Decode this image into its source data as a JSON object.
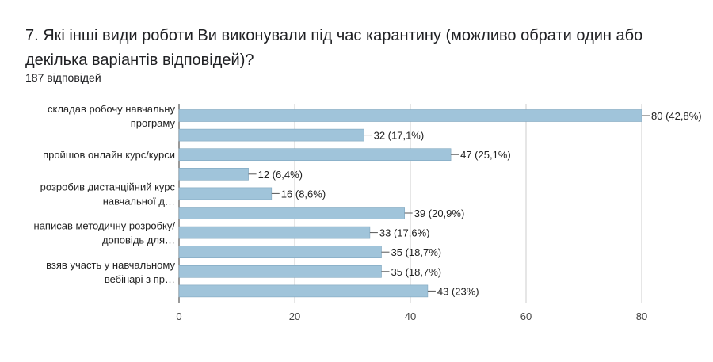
{
  "question": {
    "title": "7. Які інші види роботи Ви виконували під час карантину (можливо обрати один або декілька варіантів відповідей)?",
    "responses": "187 відповідей"
  },
  "chart_data": {
    "type": "bar",
    "orientation": "horizontal",
    "title": "",
    "xlabel": "",
    "ylabel": "",
    "xlim": [
      0,
      80
    ],
    "xticks": [
      0,
      20,
      40,
      60,
      80
    ],
    "grid": true,
    "legend": "none",
    "bar_color": "#a0c4da",
    "bar_edge_color": "#7fa6bf",
    "category_labels": [
      {
        "lines": [
          "складав робочу навчальну",
          "програму"
        ]
      },
      {
        "lines": [
          "пройшов онлайн курс/курси"
        ]
      },
      {
        "lines": [
          "розробив дистанційний курс",
          "навчальної д…"
        ]
      },
      {
        "lines": [
          "написав методичну розробку/",
          "доповідь для…"
        ]
      },
      {
        "lines": [
          "взяв участь у навчальному",
          "вебінарі з пр…"
        ]
      }
    ],
    "values": [
      80,
      32,
      47,
      12,
      16,
      39,
      33,
      35,
      35,
      43
    ],
    "data_labels": [
      "80 (42,8%)",
      "32 (17,1%)",
      "47 (25,1%)",
      "12 (6,4%)",
      "16 (8,6%)",
      "39 (20,9%)",
      "33 (17,6%)",
      "35 (18,7%)",
      "35 (18,7%)",
      "43 (23%)"
    ]
  }
}
